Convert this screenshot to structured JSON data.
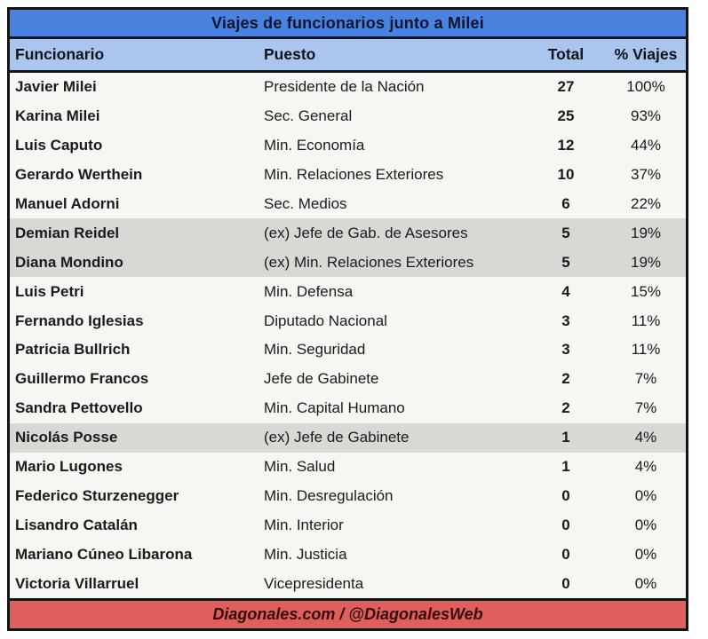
{
  "chart_data": {
    "type": "table",
    "title": "Viajes de funcionarios junto a Milei",
    "columns": [
      "Funcionario",
      "Puesto",
      "Total",
      "% Viajes"
    ],
    "rows": [
      {
        "funcionario": "Javier Milei",
        "puesto": "Presidente de la Nación",
        "total": "27",
        "pct_viajes": "100%",
        "highlighted": false
      },
      {
        "funcionario": "Karina Milei",
        "puesto": "Sec. General",
        "total": "25",
        "pct_viajes": "93%",
        "highlighted": false
      },
      {
        "funcionario": "Luis Caputo",
        "puesto": "Min. Economía",
        "total": "12",
        "pct_viajes": "44%",
        "highlighted": false
      },
      {
        "funcionario": "Gerardo Werthein",
        "puesto": "Min. Relaciones Exteriores",
        "total": "10",
        "pct_viajes": "37%",
        "highlighted": false
      },
      {
        "funcionario": "Manuel Adorni",
        "puesto": "Sec. Medios",
        "total": "6",
        "pct_viajes": "22%",
        "highlighted": false
      },
      {
        "funcionario": "Demian Reidel",
        "puesto": "(ex) Jefe de Gab. de Asesores",
        "total": "5",
        "pct_viajes": "19%",
        "highlighted": true
      },
      {
        "funcionario": "Diana Mondino",
        "puesto": "(ex) Min. Relaciones Exteriores",
        "total": "5",
        "pct_viajes": "19%",
        "highlighted": true
      },
      {
        "funcionario": "Luis Petri",
        "puesto": "Min. Defensa",
        "total": "4",
        "pct_viajes": "15%",
        "highlighted": false
      },
      {
        "funcionario": "Fernando Iglesias",
        "puesto": "Diputado Nacional",
        "total": "3",
        "pct_viajes": "11%",
        "highlighted": false
      },
      {
        "funcionario": "Patricia Bullrich",
        "puesto": "Min. Seguridad",
        "total": "3",
        "pct_viajes": "11%",
        "highlighted": false
      },
      {
        "funcionario": "Guillermo Francos",
        "puesto": "Jefe de Gabinete",
        "total": "2",
        "pct_viajes": "7%",
        "highlighted": false
      },
      {
        "funcionario": "Sandra Pettovello",
        "puesto": "Min. Capital Humano",
        "total": "2",
        "pct_viajes": "7%",
        "highlighted": false
      },
      {
        "funcionario": "Nicolás Posse",
        "puesto": "(ex) Jefe de Gabinete",
        "total": "1",
        "pct_viajes": "4%",
        "highlighted": true
      },
      {
        "funcionario": "Mario Lugones",
        "puesto": "Min. Salud",
        "total": "1",
        "pct_viajes": "4%",
        "highlighted": false
      },
      {
        "funcionario": "Federico Sturzenegger",
        "puesto": "Min. Desregulación",
        "total": "0",
        "pct_viajes": "0%",
        "highlighted": false
      },
      {
        "funcionario": "Lisandro Catalán",
        "puesto": "Min. Interior",
        "total": "0",
        "pct_viajes": "0%",
        "highlighted": false
      },
      {
        "funcionario": "Mariano Cúneo Libarona",
        "puesto": "Min. Justicia",
        "total": "0",
        "pct_viajes": "0%",
        "highlighted": false
      },
      {
        "funcionario": "Victoria Villarruel",
        "puesto": "Vicepresidenta",
        "total": "0",
        "pct_viajes": "0%",
        "highlighted": false
      }
    ],
    "footer": "Diagonales.com / @DiagonalesWeb",
    "layout": {
      "grid": "off",
      "highlight_meaning": "former officials (ex) rows shaded gray"
    }
  },
  "colors": {
    "title_bg": "#4a82e0",
    "header_bg": "#aac5ee",
    "row_bg": "#f7f6f2",
    "highlight_row_bg": "#d9d8d5",
    "footer_bg": "#de5f5b",
    "border": "#141414",
    "title_text": "#0d1430",
    "body_text": "#1b1b1b",
    "footer_text": "#35090c"
  }
}
